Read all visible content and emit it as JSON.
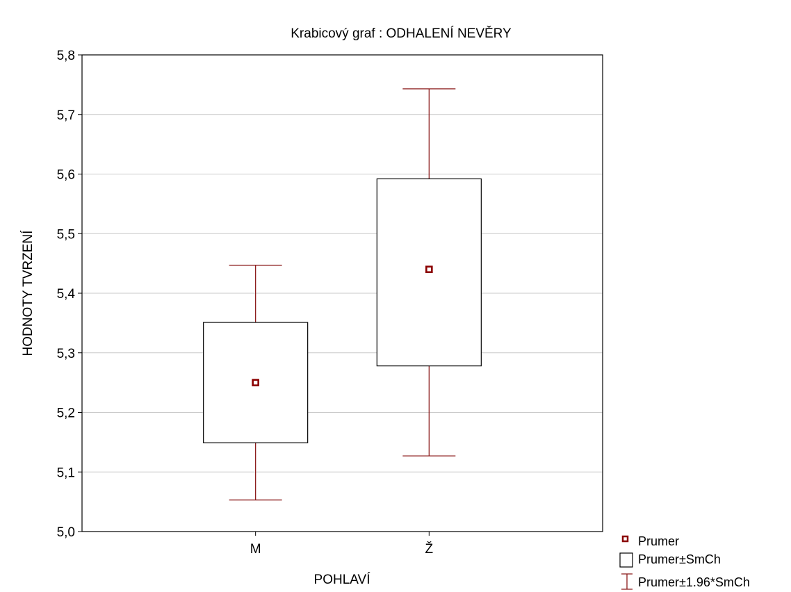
{
  "chart_data": {
    "type": "box",
    "title": "Krabicový  graf :  ODHALENÍ NEVĚRY",
    "xlabel": "POHLAVÍ",
    "ylabel": "HODNOTY TVRZENÍ",
    "ylim": [
      5.0,
      5.8
    ],
    "y_ticks": [
      "5,0",
      "5,1",
      "5,2",
      "5,3",
      "5,4",
      "5,5",
      "5,6",
      "5,7",
      "5,8"
    ],
    "y_tick_values": [
      5.0,
      5.1,
      5.2,
      5.3,
      5.4,
      5.5,
      5.6,
      5.7,
      5.8
    ],
    "grid": true,
    "legend_position": "bottom-right",
    "categories": [
      "M",
      "Ž"
    ],
    "series": [
      {
        "category": "M",
        "mean": 5.25,
        "box_low": 5.149,
        "box_high": 5.351,
        "whisker_low": 5.053,
        "whisker_high": 5.447
      },
      {
        "category": "Ž",
        "mean": 5.44,
        "box_low": 5.278,
        "box_high": 5.592,
        "whisker_low": 5.127,
        "whisker_high": 5.743
      }
    ],
    "legend": {
      "mean": "Prumer",
      "box": "Prumer±SmCh",
      "whisker": "Prumer±1.96*SmCh"
    },
    "colors": {
      "whisker": "#8b1a1a",
      "mean_marker": "#8b0000",
      "box": "#000000",
      "grid": "#c8c8c8"
    }
  }
}
